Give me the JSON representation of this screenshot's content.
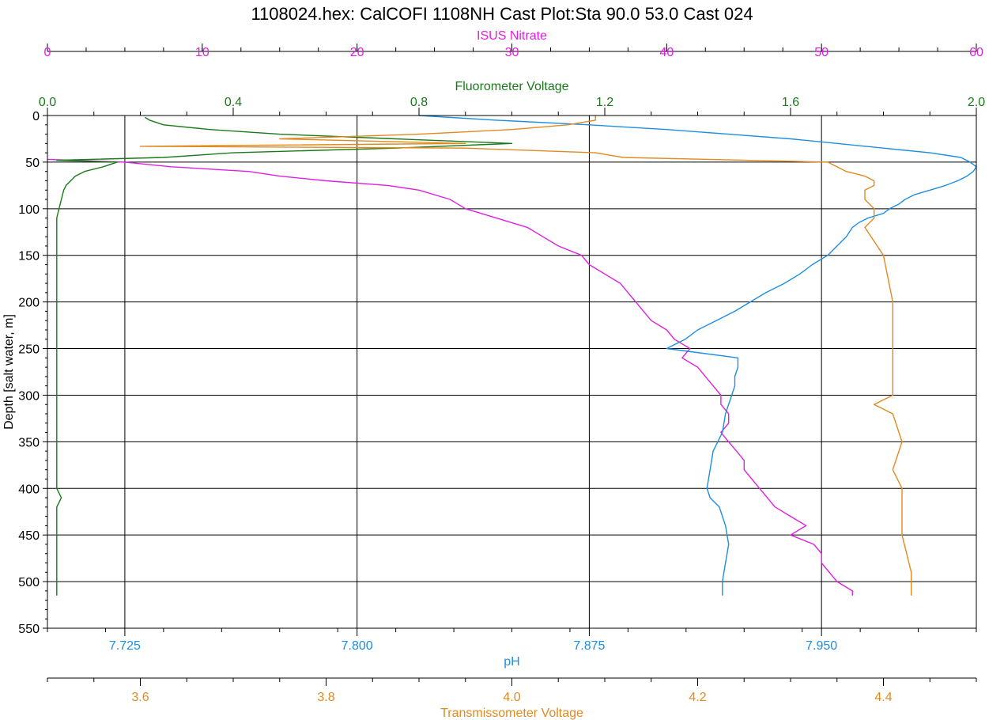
{
  "chart_data": {
    "type": "line",
    "title": "1108024.hex: CalCOFI 1108NH Cast Plot:Sta 90.0 53.0 Cast 024",
    "y_axis": {
      "label": "Depth [salt water, m]",
      "range": [
        0,
        550
      ],
      "inverted": true,
      "ticks": [
        0,
        50,
        100,
        150,
        200,
        250,
        300,
        350,
        400,
        450,
        500,
        550
      ],
      "grid": true
    },
    "x_axes": [
      {
        "id": "nitrate",
        "label": "ISUS Nitrate",
        "position": "top-1",
        "color": "#e020e0",
        "range": [
          0,
          60
        ],
        "ticks": [
          0,
          10,
          20,
          30,
          40,
          50,
          60
        ],
        "tick_labels": [
          "0",
          "10",
          "20",
          "30",
          "40",
          "50",
          "60"
        ]
      },
      {
        "id": "fluor",
        "label": "Fluorometer Voltage",
        "position": "top-2",
        "color": "#1a7a1a",
        "range": [
          0.0,
          2.0
        ],
        "ticks": [
          0.0,
          0.4,
          0.8,
          1.2,
          1.6,
          2.0
        ],
        "tick_labels": [
          "0.0",
          "0.4",
          "0.8",
          "1.2",
          "1.6",
          "2.0"
        ]
      },
      {
        "id": "ph",
        "label": "pH",
        "position": "bottom-1",
        "color": "#1e8ee0",
        "range": [
          7.7,
          8.0
        ],
        "ticks": [
          7.725,
          7.8,
          7.875,
          7.95
        ],
        "tick_labels": [
          "7.725",
          "7.800",
          "7.875",
          "7.950"
        ],
        "grid": true
      },
      {
        "id": "trans",
        "label": "Transmissometer Voltage",
        "position": "bottom-2",
        "color": "#e08a20",
        "range": [
          3.5,
          4.5
        ],
        "ticks": [
          3.6,
          3.8,
          4.0,
          4.2,
          4.4
        ],
        "tick_labels": [
          "3.6",
          "3.8",
          "4.0",
          "4.2",
          "4.4"
        ]
      }
    ],
    "series": [
      {
        "axis": "nitrate",
        "color": "#e020e0",
        "depth": [
          47,
          50,
          55,
          60,
          65,
          70,
          75,
          80,
          90,
          100,
          110,
          120,
          130,
          140,
          150,
          160,
          170,
          180,
          190,
          200,
          210,
          220,
          230,
          240,
          250,
          260,
          270,
          280,
          290,
          300,
          310,
          320,
          330,
          340,
          350,
          360,
          370,
          380,
          390,
          400,
          410,
          420,
          430,
          440,
          450,
          460,
          470,
          480,
          490,
          500,
          510,
          515
        ],
        "values": [
          0,
          5,
          8,
          13,
          15,
          18,
          22,
          24,
          26,
          27,
          29,
          31,
          32,
          33,
          34.5,
          35,
          36,
          37,
          37.5,
          38,
          38.5,
          39,
          40,
          40.5,
          41.5,
          41,
          42,
          42.5,
          43,
          43.5,
          43.5,
          44,
          44,
          43.5,
          44,
          44.5,
          45,
          45,
          45.5,
          46,
          46.5,
          47,
          48,
          49,
          48,
          49.5,
          50,
          50,
          50.5,
          51,
          52,
          52
        ]
      },
      {
        "axis": "fluor",
        "color": "#1a7a1a",
        "depth": [
          2,
          5,
          10,
          15,
          20,
          25,
          30,
          35,
          40,
          45,
          48,
          50,
          55,
          60,
          65,
          70,
          75,
          80,
          90,
          100,
          110,
          120,
          150,
          200,
          250,
          300,
          350,
          400,
          410,
          420,
          450,
          500,
          515
        ],
        "values": [
          0.21,
          0.22,
          0.25,
          0.35,
          0.5,
          0.75,
          1.0,
          0.75,
          0.4,
          0.25,
          0.02,
          0.15,
          0.12,
          0.08,
          0.06,
          0.05,
          0.04,
          0.035,
          0.03,
          0.025,
          0.02,
          0.02,
          0.02,
          0.02,
          0.02,
          0.02,
          0.02,
          0.02,
          0.03,
          0.02,
          0.02,
          0.02,
          0.02
        ]
      },
      {
        "axis": "ph",
        "color": "#1e8ee0",
        "depth": [
          0,
          5,
          10,
          15,
          20,
          25,
          30,
          35,
          40,
          45,
          50,
          55,
          60,
          65,
          70,
          75,
          80,
          85,
          90,
          95,
          100,
          105,
          110,
          115,
          120,
          130,
          140,
          150,
          160,
          170,
          180,
          190,
          200,
          210,
          220,
          230,
          240,
          250,
          260,
          270,
          280,
          290,
          300,
          320,
          340,
          360,
          380,
          400,
          410,
          420,
          440,
          460,
          480,
          500,
          510,
          515
        ],
        "values": [
          7.82,
          7.845,
          7.875,
          7.9,
          7.92,
          7.94,
          7.955,
          7.97,
          7.985,
          7.995,
          7.998,
          8.0,
          7.999,
          7.997,
          7.994,
          7.99,
          7.985,
          7.98,
          7.977,
          7.975,
          7.972,
          7.97,
          7.965,
          7.962,
          7.96,
          7.958,
          7.955,
          7.952,
          7.947,
          7.943,
          7.938,
          7.932,
          7.927,
          7.922,
          7.916,
          7.91,
          7.906,
          7.9,
          7.923,
          7.923,
          7.922,
          7.922,
          7.921,
          7.919,
          7.918,
          7.915,
          7.914,
          7.913,
          7.914,
          7.917,
          7.919,
          7.92,
          7.919,
          7.918,
          7.918,
          7.918
        ]
      },
      {
        "axis": "trans",
        "color": "#e08a20",
        "depth": [
          0,
          5,
          10,
          15,
          20,
          25,
          30,
          33,
          35,
          40,
          45,
          50,
          55,
          60,
          65,
          70,
          75,
          80,
          90,
          100,
          110,
          120,
          150,
          200,
          250,
          300,
          310,
          320,
          350,
          380,
          400,
          450,
          490,
          500,
          510,
          515
        ],
        "values": [
          4.09,
          4.09,
          4.06,
          4.0,
          3.9,
          3.75,
          3.95,
          3.6,
          3.95,
          4.09,
          4.12,
          4.34,
          4.35,
          4.36,
          4.38,
          4.39,
          4.39,
          4.38,
          4.38,
          4.39,
          4.39,
          4.38,
          4.4,
          4.41,
          4.41,
          4.41,
          4.39,
          4.41,
          4.42,
          4.41,
          4.42,
          4.42,
          4.43,
          4.43,
          4.43,
          4.43
        ]
      }
    ]
  }
}
